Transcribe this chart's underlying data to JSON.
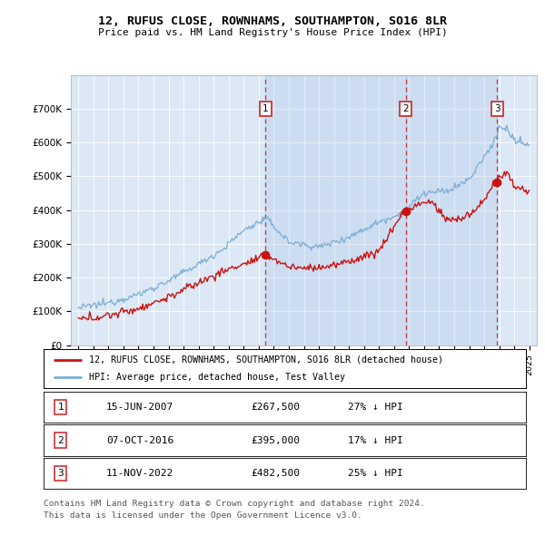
{
  "title1": "12, RUFUS CLOSE, ROWNHAMS, SOUTHAMPTON, SO16 8LR",
  "title2": "Price paid vs. HM Land Registry's House Price Index (HPI)",
  "plot_bg_color": "#dce8f5",
  "shade_color": "#c8daf0",
  "ylim": [
    0,
    800000
  ],
  "yticks": [
    0,
    100000,
    200000,
    300000,
    400000,
    500000,
    600000,
    700000
  ],
  "ytick_labels": [
    "£0",
    "£100K",
    "£200K",
    "£300K",
    "£400K",
    "£500K",
    "£600K",
    "£700K"
  ],
  "legend_label_red": "12, RUFUS CLOSE, ROWNHAMS, SOUTHAMPTON, SO16 8LR (detached house)",
  "legend_label_blue": "HPI: Average price, detached house, Test Valley",
  "transaction_years": [
    2007.45,
    2016.77,
    2022.86
  ],
  "transaction_prices": [
    267500,
    395000,
    482500
  ],
  "footer1": "Contains HM Land Registry data © Crown copyright and database right 2024.",
  "footer2": "This data is licensed under the Open Government Licence v3.0.",
  "table_entries": [
    {
      "num": "1",
      "date": "15-JUN-2007",
      "price": "£267,500",
      "pct": "27% ↓ HPI"
    },
    {
      "num": "2",
      "date": "07-OCT-2016",
      "price": "£395,000",
      "pct": "17% ↓ HPI"
    },
    {
      "num": "3",
      "date": "11-NOV-2022",
      "price": "£482,500",
      "pct": "25% ↓ HPI"
    }
  ]
}
